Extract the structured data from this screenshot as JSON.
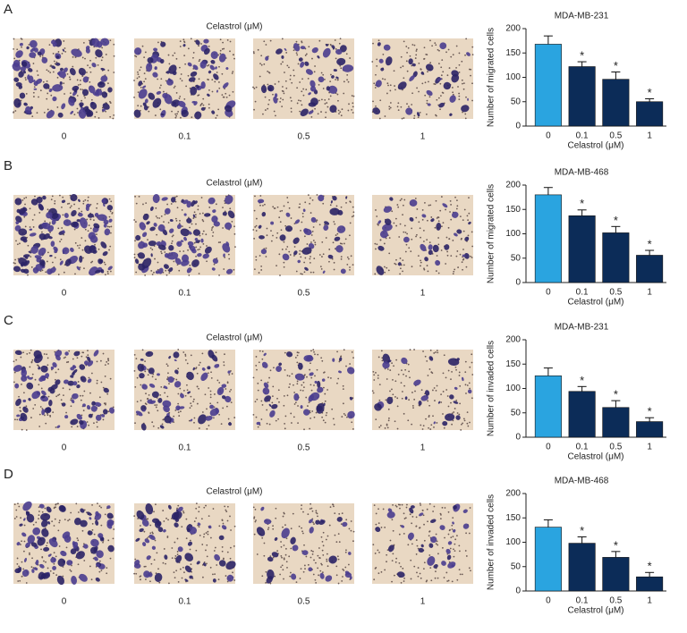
{
  "panels": [
    {
      "letter": "A",
      "treatment_label": "Celastrol (μM)",
      "image_labels": [
        "0",
        "0.1",
        "0.5",
        "1"
      ]
    },
    {
      "letter": "B",
      "treatment_label": "Celastrol (μM)",
      "image_labels": [
        "0",
        "0.1",
        "0.5",
        "1"
      ]
    },
    {
      "letter": "C",
      "treatment_label": "Celastrol (μM)",
      "image_labels": [
        "0",
        "0.1",
        "0.5",
        "1"
      ]
    },
    {
      "letter": "D",
      "treatment_label": "Celastrol (μM)",
      "image_labels": [
        "0",
        "0.1",
        "0.5",
        "1"
      ]
    }
  ],
  "chart_data": [
    {
      "type": "bar",
      "title": "MDA-MB-231",
      "y_label": "Number of migrated cells",
      "x_label": "Celastrol (μM)",
      "categories": [
        "0",
        "0.1",
        "0.5",
        "1"
      ],
      "values": [
        168,
        122,
        96,
        50
      ],
      "errors": [
        17,
        10,
        15,
        6
      ],
      "significance": [
        null,
        "*",
        "*",
        "*"
      ],
      "colors": [
        "#2aa4e0",
        "#0c2c58",
        "#0c2c58",
        "#0c2c58"
      ],
      "ylim": [
        0,
        200
      ],
      "yticks": [
        0,
        50,
        100,
        150,
        200
      ]
    },
    {
      "type": "bar",
      "title": "MDA-MB-468",
      "y_label": "Number of migrated cells",
      "x_label": "Celastrol (μM)",
      "categories": [
        "0",
        "0.1",
        "0.5",
        "1"
      ],
      "values": [
        180,
        137,
        102,
        56
      ],
      "errors": [
        15,
        12,
        13,
        10
      ],
      "significance": [
        null,
        "*",
        "*",
        "*"
      ],
      "colors": [
        "#2aa4e0",
        "#0c2c58",
        "#0c2c58",
        "#0c2c58"
      ],
      "ylim": [
        0,
        200
      ],
      "yticks": [
        0,
        50,
        100,
        150,
        200
      ]
    },
    {
      "type": "bar",
      "title": "MDA-MB-231",
      "y_label": "Number of invaded cells",
      "x_label": "Celastrol (μM)",
      "categories": [
        "0",
        "0.1",
        "0.5",
        "1"
      ],
      "values": [
        126,
        94,
        61,
        32
      ],
      "errors": [
        16,
        10,
        14,
        8
      ],
      "significance": [
        null,
        "*",
        "*",
        "*"
      ],
      "colors": [
        "#2aa4e0",
        "#0c2c58",
        "#0c2c58",
        "#0c2c58"
      ],
      "ylim": [
        0,
        200
      ],
      "yticks": [
        0,
        50,
        100,
        150,
        200
      ]
    },
    {
      "type": "bar",
      "title": "MDA-MB-468",
      "y_label": "Number of invaded cells",
      "x_label": "Celastrol (μM)",
      "categories": [
        "0",
        "0.1",
        "0.5",
        "1"
      ],
      "values": [
        131,
        98,
        69,
        29
      ],
      "errors": [
        15,
        13,
        12,
        9
      ],
      "significance": [
        null,
        "*",
        "*",
        "*"
      ],
      "colors": [
        "#2aa4e0",
        "#0c2c58",
        "#0c2c58",
        "#0c2c58"
      ],
      "ylim": [
        0,
        200
      ],
      "yticks": [
        0,
        50,
        100,
        150,
        200
      ]
    }
  ]
}
